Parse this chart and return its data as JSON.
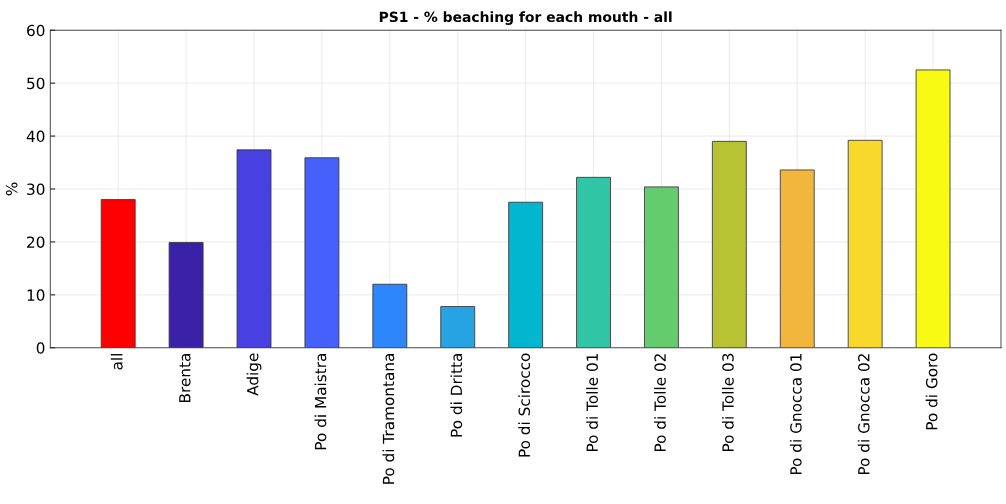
{
  "chart_data": {
    "type": "bar",
    "title": "PS1 - % beaching for each mouth - all",
    "ylabel": "%",
    "categories": [
      "all",
      "Brenta",
      "Adige",
      "Po di Maistra",
      "Po di Tramontana",
      "Po di Dritta",
      "Po di Scirocco",
      "Po di Tolle 01",
      "Po di Tolle 02",
      "Po di Tolle 03",
      "Po di Gnocca 01",
      "Po di Gnocca 02",
      "Po di Goro"
    ],
    "values": [
      28.0,
      19.9,
      37.4,
      35.9,
      12.0,
      7.8,
      27.5,
      32.2,
      30.4,
      39.0,
      33.6,
      39.2,
      52.5
    ],
    "colors": [
      "#ff0000",
      "#3a22a8",
      "#4840e0",
      "#4660fc",
      "#2e86fb",
      "#26a3e2",
      "#03b6cf",
      "#30c5a5",
      "#64cc6d",
      "#b8c333",
      "#f3b63c",
      "#f8d82b",
      "#f9fa14"
    ],
    "ylim": [
      0,
      60
    ],
    "yticks": [
      0,
      10,
      20,
      30,
      40,
      50,
      60
    ],
    "grid": true,
    "legend": false
  }
}
